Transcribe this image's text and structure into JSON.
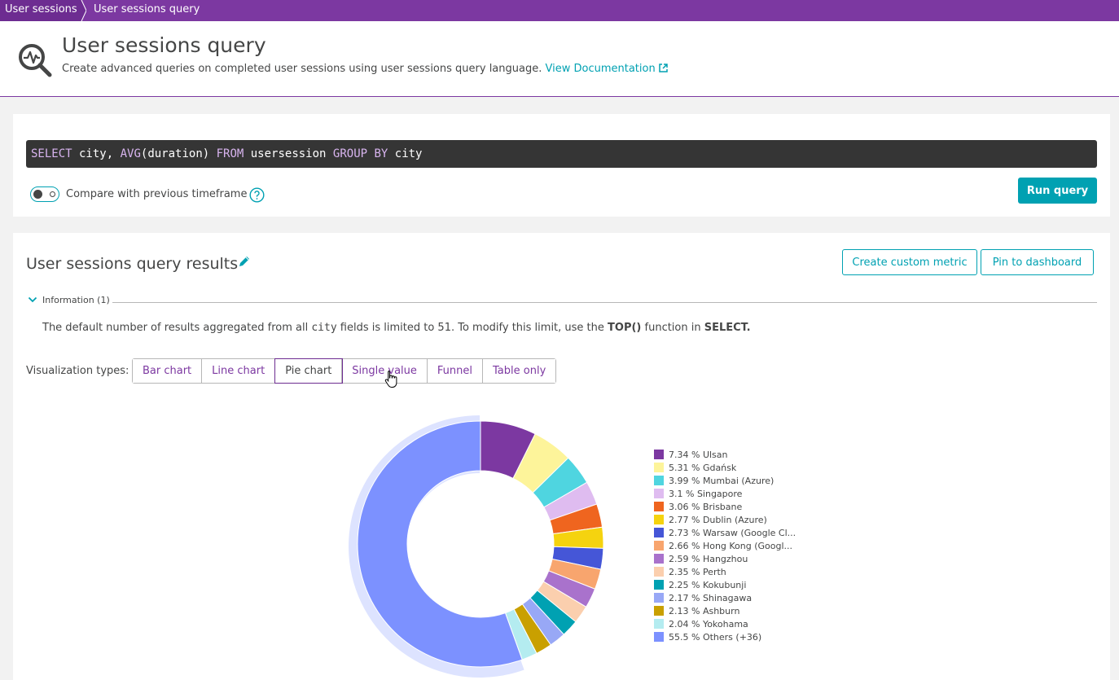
{
  "breadcrumb": {
    "items": [
      "User sessions",
      "User sessions query"
    ]
  },
  "header": {
    "title": "User sessions query",
    "subtitle": "Create advanced queries on completed user sessions using user sessions query language.",
    "doc_link": "View Documentation"
  },
  "query": {
    "tokens": [
      {
        "text": "SELECT",
        "kw": true
      },
      {
        "text": " city, ",
        "kw": false
      },
      {
        "text": "AVG",
        "kw": true
      },
      {
        "text": "(duration) ",
        "kw": false
      },
      {
        "text": "FROM",
        "kw": true
      },
      {
        "text": " usersession ",
        "kw": false
      },
      {
        "text": "GROUP BY",
        "kw": true
      },
      {
        "text": " city",
        "kw": false
      }
    ],
    "compare_label": "Compare with previous timeframe",
    "compare_enabled": false,
    "run_label": "Run query"
  },
  "results": {
    "title": "User sessions query results",
    "create_metric_label": "Create custom metric",
    "pin_label": "Pin to dashboard",
    "info_label": "Information (1)",
    "info_text": {
      "part1": "The default number of results aggregated from all ",
      "field": "city",
      "part2": " fields is limited to 51. To modify this limit, use the ",
      "fn": "TOP()",
      "part3": " function in ",
      "select": "SELECT."
    },
    "viz_label": "Visualization types:",
    "viz_types": [
      "Bar chart",
      "Line chart",
      "Pie chart",
      "Single value",
      "Funnel",
      "Table only"
    ],
    "viz_selected": "Pie chart"
  },
  "chart_data": {
    "type": "pie",
    "donut": true,
    "highlighted": "Others (+36)",
    "slices": [
      {
        "label": "Ulsan",
        "legend": "7.34 % Ulsan",
        "value": 7.34,
        "color": "#7c38a1"
      },
      {
        "label": "Gdańsk",
        "legend": "5.31 % Gdańsk",
        "value": 5.31,
        "color": "#fdf49a"
      },
      {
        "label": "Mumbai (Azure)",
        "legend": "3.99 % Mumbai (Azure)",
        "value": 3.99,
        "color": "#4fd5e0"
      },
      {
        "label": "Singapore",
        "legend": "3.1 % Singapore",
        "value": 3.1,
        "color": "#dfbcf0"
      },
      {
        "label": "Brisbane",
        "legend": "3.06 % Brisbane",
        "value": 3.06,
        "color": "#ef651f"
      },
      {
        "label": "Dublin (Azure)",
        "legend": "2.77 % Dublin (Azure)",
        "value": 2.77,
        "color": "#f5d30f"
      },
      {
        "label": "Warsaw (Google Cl...",
        "legend": "2.73 % Warsaw (Google Cl...",
        "value": 2.73,
        "color": "#4556d7"
      },
      {
        "label": "Hong Kong (Googl...",
        "legend": "2.66 % Hong Kong (Googl...",
        "value": 2.66,
        "color": "#f8a56e"
      },
      {
        "label": "Hangzhou",
        "legend": "2.59 % Hangzhou",
        "value": 2.59,
        "color": "#a972cc"
      },
      {
        "label": "Perth",
        "legend": "2.35 % Perth",
        "value": 2.35,
        "color": "#fbcfae"
      },
      {
        "label": "Kokubunji",
        "legend": "2.25 % Kokubunji",
        "value": 2.25,
        "color": "#00a1b2"
      },
      {
        "label": "Shinagawa",
        "legend": "2.17 % Shinagawa",
        "value": 2.17,
        "color": "#98a8f6"
      },
      {
        "label": "Ashburn",
        "legend": "2.13 % Ashburn",
        "value": 2.13,
        "color": "#c9a000"
      },
      {
        "label": "Yokohama",
        "legend": "2.04 % Yokohama",
        "value": 2.04,
        "color": "#b4ecf0"
      },
      {
        "label": "Others (+36)",
        "legend": "55.5 % Others (+36)",
        "value": 55.5,
        "color": "#7c91ff"
      }
    ]
  }
}
